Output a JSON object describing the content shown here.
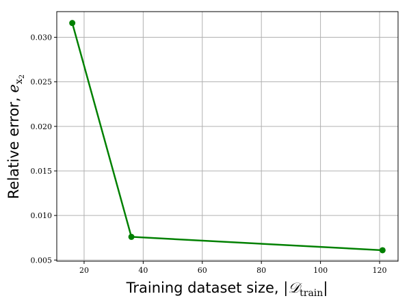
{
  "chart_data": {
    "type": "line",
    "xlabel": "Training dataset size, ",
    "xlabel_math": "|𝒟",
    "xlabel_sub": "train",
    "xlabel_close": "|",
    "ylabel": "Relative error, ",
    "ylabel_math": "e",
    "ylabel_sub": "x",
    "ylabel_subsub": "2",
    "xlim": [
      10.75,
      126.25
    ],
    "ylim": [
      0.00487,
      0.03288
    ],
    "xticks": [
      20,
      40,
      60,
      80,
      100,
      120
    ],
    "yticks": [
      0.005,
      0.01,
      0.015,
      0.02,
      0.025,
      0.03
    ],
    "ytick_labels": [
      "0.005",
      "0.010",
      "0.015",
      "0.020",
      "0.025",
      "0.030"
    ],
    "grid": true,
    "series": [
      {
        "color": "#008000",
        "x": [
          16,
          36,
          121
        ],
        "y": [
          0.0316,
          0.0076,
          0.0061
        ]
      }
    ]
  }
}
